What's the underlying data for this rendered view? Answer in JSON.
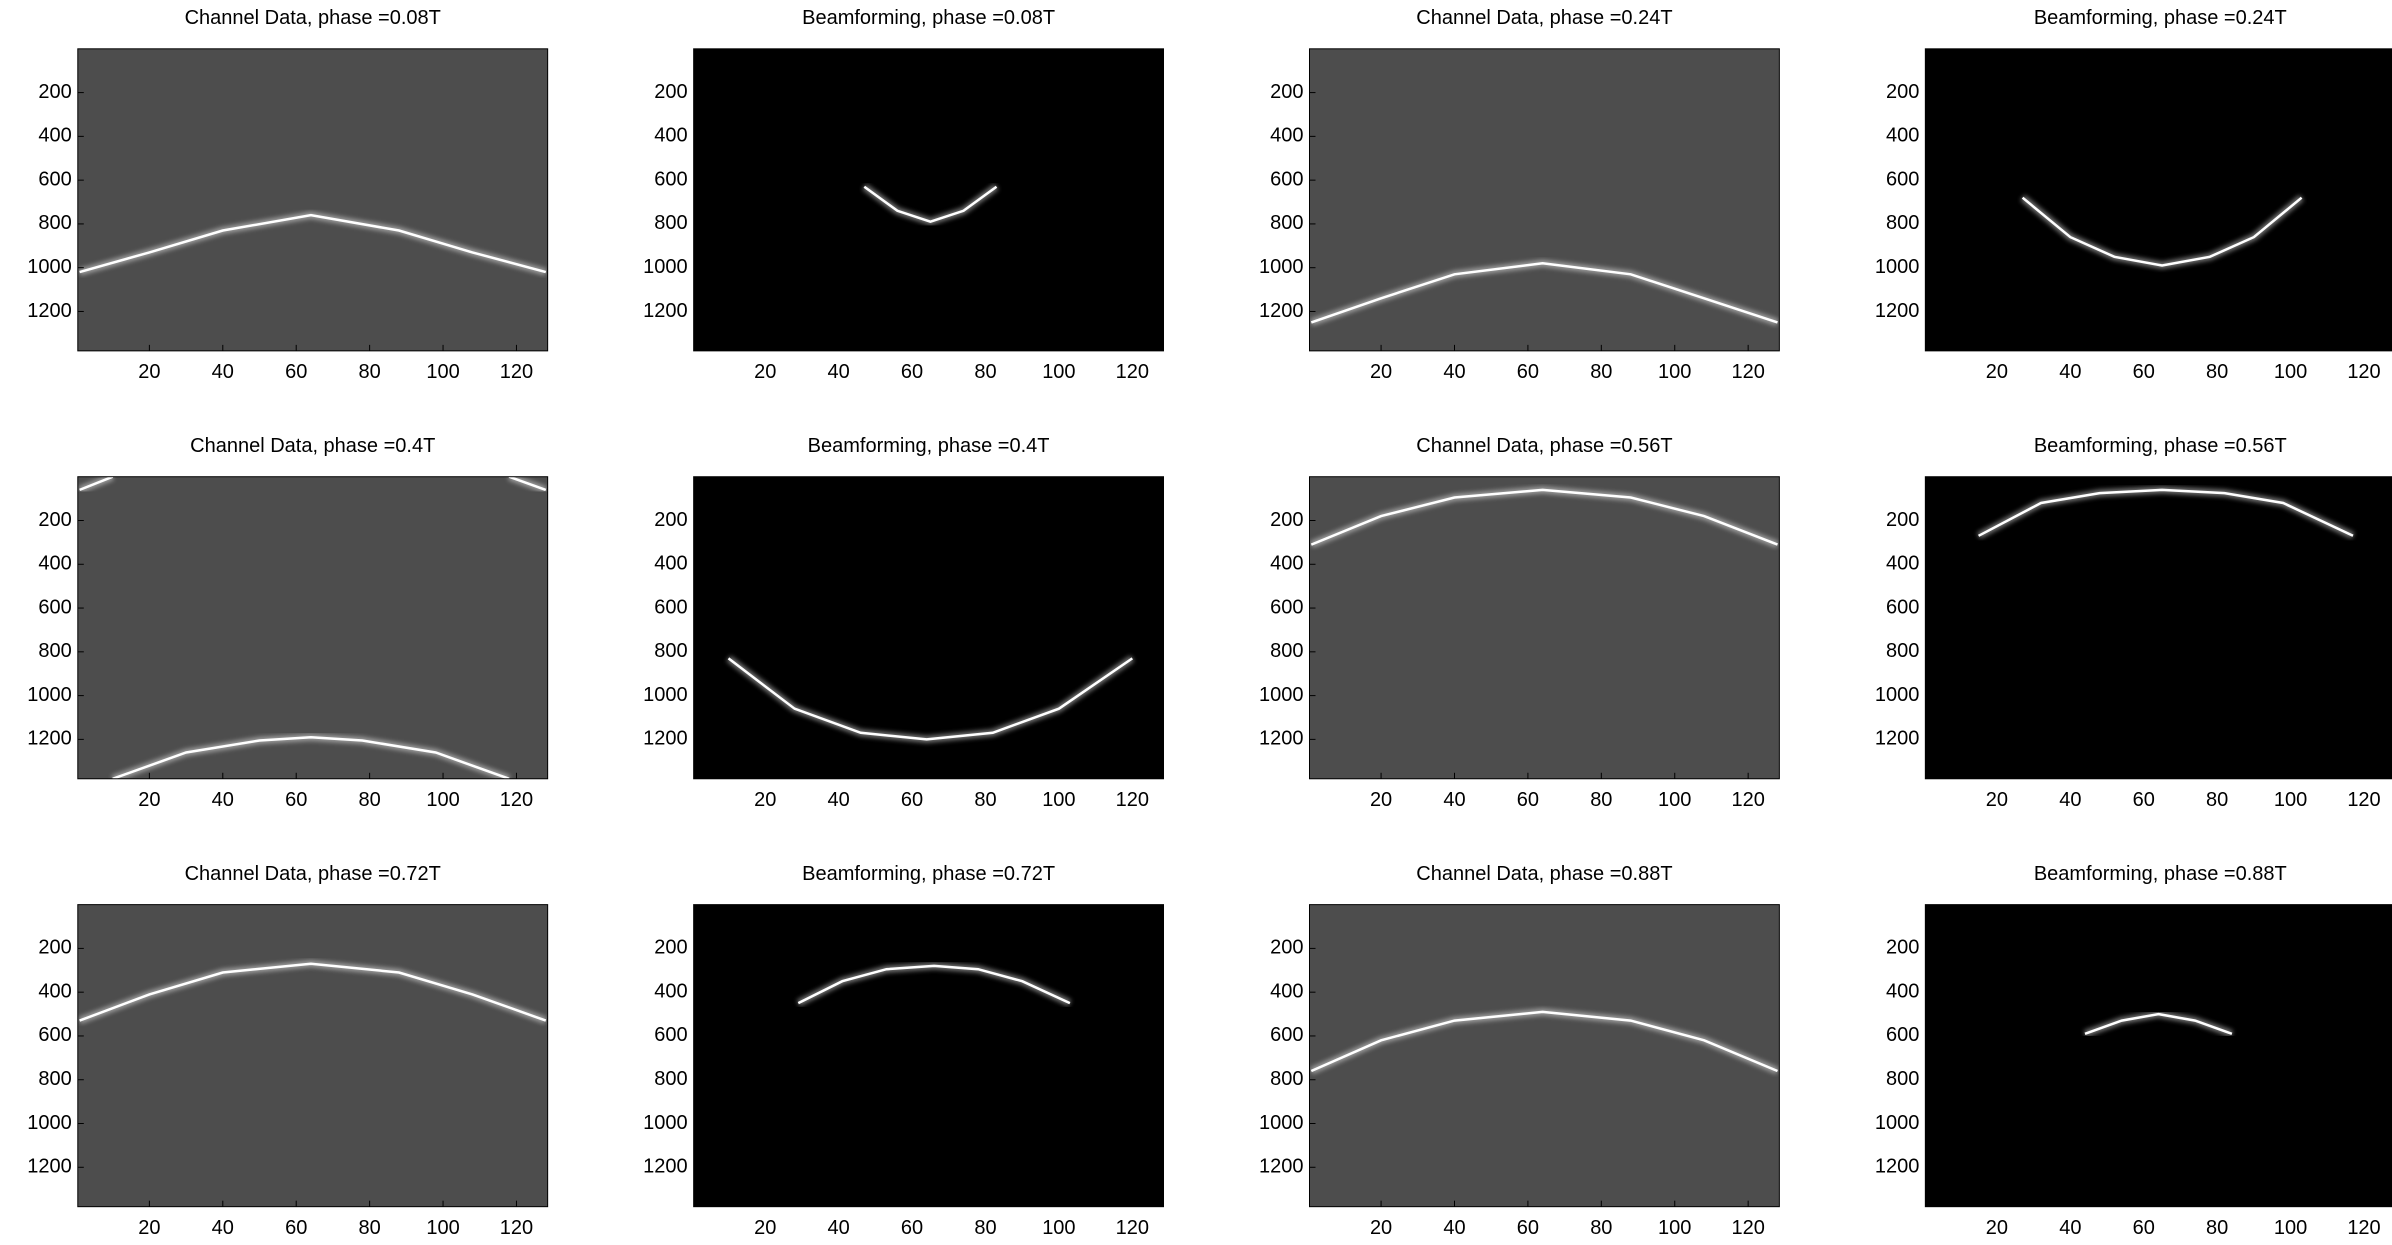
{
  "chart_data": [
    {
      "type": "image",
      "title": "Channel Data, phase =0.08T",
      "background": "#4d4d4d",
      "xlim": [
        0.5,
        128.5
      ],
      "ylim": [
        1380,
        0
      ],
      "xticks": [
        20,
        40,
        60,
        80,
        100,
        120
      ],
      "yticks": [
        200,
        400,
        600,
        800,
        1000,
        1200
      ],
      "series": [
        {
          "color": "#ffffff",
          "x": [
            1,
            20,
            40,
            64,
            88,
            108,
            128
          ],
          "values": [
            1020,
            930,
            830,
            760,
            830,
            930,
            1020
          ]
        }
      ]
    },
    {
      "type": "image",
      "title": "Beamforming, phase =0.08T",
      "background": "#000000",
      "xlim": [
        0.5,
        128.5
      ],
      "ylim": [
        1380,
        0
      ],
      "xticks": [
        20,
        40,
        60,
        80,
        100,
        120
      ],
      "yticks": [
        200,
        400,
        600,
        800,
        1000,
        1200
      ],
      "series": [
        {
          "color": "#ffffff",
          "x": [
            47,
            56,
            65,
            74,
            83
          ],
          "values": [
            630,
            740,
            790,
            740,
            630
          ]
        }
      ]
    },
    {
      "type": "image",
      "title": "Channel Data, phase =0.24T",
      "background": "#4d4d4d",
      "xlim": [
        0.5,
        128.5
      ],
      "ylim": [
        1380,
        0
      ],
      "xticks": [
        20,
        40,
        60,
        80,
        100,
        120
      ],
      "yticks": [
        200,
        400,
        600,
        800,
        1000,
        1200
      ],
      "series": [
        {
          "color": "#ffffff",
          "x": [
            1,
            20,
            40,
            64,
            88,
            108,
            128
          ],
          "values": [
            1250,
            1140,
            1030,
            980,
            1030,
            1140,
            1250
          ]
        }
      ]
    },
    {
      "type": "image",
      "title": "Beamforming, phase =0.24T",
      "background": "#000000",
      "xlim": [
        0.5,
        128.5
      ],
      "ylim": [
        1380,
        0
      ],
      "xticks": [
        20,
        40,
        60,
        80,
        100,
        120
      ],
      "yticks": [
        200,
        400,
        600,
        800,
        1000,
        1200
      ],
      "series": [
        {
          "color": "#ffffff",
          "x": [
            27,
            40,
            52,
            65,
            78,
            90,
            103
          ],
          "values": [
            680,
            860,
            950,
            990,
            950,
            860,
            680
          ]
        }
      ]
    },
    {
      "type": "image",
      "title": "Channel Data, phase =0.4T",
      "background": "#4d4d4d",
      "xlim": [
        0.5,
        128.5
      ],
      "ylim": [
        1380,
        0
      ],
      "xticks": [
        20,
        40,
        60,
        80,
        100,
        120
      ],
      "yticks": [
        200,
        400,
        600,
        800,
        1000,
        1200
      ],
      "series": [
        {
          "color": "#ffffff",
          "x": [
            10,
            30,
            50,
            64,
            78,
            98,
            118
          ],
          "values": [
            1380,
            1260,
            1205,
            1190,
            1205,
            1260,
            1380
          ]
        },
        {
          "color": "#ffffff",
          "x": [
            1,
            10,
            64,
            118,
            128
          ],
          "values": [
            60,
            0,
            null,
            0,
            60
          ]
        }
      ]
    },
    {
      "type": "image",
      "title": "Beamforming, phase =0.4T",
      "background": "#000000",
      "xlim": [
        0.5,
        128.5
      ],
      "ylim": [
        1380,
        0
      ],
      "xticks": [
        20,
        40,
        60,
        80,
        100,
        120
      ],
      "yticks": [
        200,
        400,
        600,
        800,
        1000,
        1200
      ],
      "series": [
        {
          "color": "#ffffff",
          "x": [
            10,
            28,
            46,
            64,
            82,
            100,
            120
          ],
          "values": [
            830,
            1060,
            1170,
            1200,
            1170,
            1060,
            830
          ]
        }
      ]
    },
    {
      "type": "image",
      "title": "Channel Data, phase =0.56T",
      "background": "#4d4d4d",
      "xlim": [
        0.5,
        128.5
      ],
      "ylim": [
        1380,
        0
      ],
      "xticks": [
        20,
        40,
        60,
        80,
        100,
        120
      ],
      "yticks": [
        200,
        400,
        600,
        800,
        1000,
        1200
      ],
      "series": [
        {
          "color": "#ffffff",
          "x": [
            1,
            20,
            40,
            64,
            88,
            108,
            128
          ],
          "values": [
            310,
            180,
            95,
            60,
            95,
            180,
            310
          ]
        }
      ]
    },
    {
      "type": "image",
      "title": "Beamforming, phase =0.56T",
      "background": "#000000",
      "xlim": [
        0.5,
        128.5
      ],
      "ylim": [
        1380,
        0
      ],
      "xticks": [
        20,
        40,
        60,
        80,
        100,
        120
      ],
      "yticks": [
        200,
        400,
        600,
        800,
        1000,
        1200
      ],
      "series": [
        {
          "color": "#ffffff",
          "x": [
            15,
            32,
            48,
            65,
            82,
            98,
            117
          ],
          "values": [
            270,
            120,
            75,
            60,
            75,
            120,
            270
          ]
        }
      ]
    },
    {
      "type": "image",
      "title": "Channel Data, phase =0.72T",
      "background": "#4d4d4d",
      "xlim": [
        0.5,
        128.5
      ],
      "ylim": [
        1380,
        0
      ],
      "xticks": [
        20,
        40,
        60,
        80,
        100,
        120
      ],
      "yticks": [
        200,
        400,
        600,
        800,
        1000,
        1200
      ],
      "series": [
        {
          "color": "#ffffff",
          "x": [
            1,
            20,
            40,
            64,
            88,
            108,
            128
          ],
          "values": [
            530,
            410,
            310,
            270,
            310,
            410,
            530
          ]
        }
      ]
    },
    {
      "type": "image",
      "title": "Beamforming, phase =0.72T",
      "background": "#000000",
      "xlim": [
        0.5,
        128.5
      ],
      "ylim": [
        1380,
        0
      ],
      "xticks": [
        20,
        40,
        60,
        80,
        100,
        120
      ],
      "yticks": [
        200,
        400,
        600,
        800,
        1000,
        1200
      ],
      "series": [
        {
          "color": "#ffffff",
          "x": [
            29,
            41,
            53,
            66,
            78,
            90,
            103
          ],
          "values": [
            450,
            350,
            295,
            280,
            295,
            350,
            450
          ]
        }
      ]
    },
    {
      "type": "image",
      "title": "Channel Data, phase =0.88T",
      "background": "#4d4d4d",
      "xlim": [
        0.5,
        128.5
      ],
      "ylim": [
        1380,
        0
      ],
      "xticks": [
        20,
        40,
        60,
        80,
        100,
        120
      ],
      "yticks": [
        200,
        400,
        600,
        800,
        1000,
        1200
      ],
      "series": [
        {
          "color": "#ffffff",
          "x": [
            1,
            20,
            40,
            64,
            88,
            108,
            128
          ],
          "values": [
            760,
            620,
            530,
            490,
            530,
            620,
            760
          ]
        }
      ]
    },
    {
      "type": "image",
      "title": "Beamforming, phase =0.88T",
      "background": "#000000",
      "xlim": [
        0.5,
        128.5
      ],
      "ylim": [
        1380,
        0
      ],
      "xticks": [
        20,
        40,
        60,
        80,
        100,
        120
      ],
      "yticks": [
        200,
        400,
        600,
        800,
        1000,
        1200
      ],
      "series": [
        {
          "color": "#ffffff",
          "x": [
            44,
            54,
            64,
            74,
            84
          ],
          "values": [
            590,
            530,
            500,
            530,
            590
          ]
        }
      ]
    }
  ]
}
